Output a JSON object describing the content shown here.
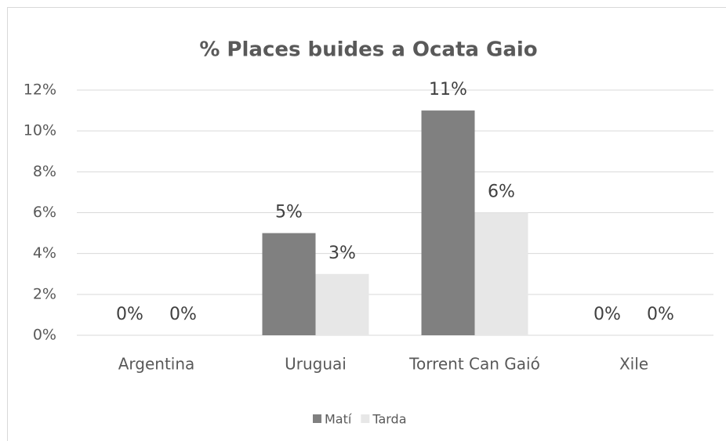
{
  "chart_data": {
    "type": "bar",
    "title": "% Places buides a Ocata Gaio",
    "categories": [
      "Argentina",
      "Uruguai",
      "Torrent Can Gaió",
      "Xile"
    ],
    "series": [
      {
        "name": "Matí",
        "color": "#808080",
        "values": [
          0,
          5,
          11,
          0
        ],
        "value_labels": [
          "0%",
          "5%",
          "11%",
          "0%"
        ]
      },
      {
        "name": "Tarda",
        "color": "#e7e7e7",
        "values": [
          0,
          3,
          6,
          0
        ],
        "value_labels": [
          "0%",
          "3%",
          "6%",
          "0%"
        ]
      }
    ],
    "ylim": [
      0,
      12
    ],
    "yticks": [
      {
        "value": 0,
        "label": "0%"
      },
      {
        "value": 2,
        "label": "2%"
      },
      {
        "value": 4,
        "label": "4%"
      },
      {
        "value": 6,
        "label": "6%"
      },
      {
        "value": 8,
        "label": "8%"
      },
      {
        "value": 10,
        "label": "10%"
      },
      {
        "value": 12,
        "label": "12%"
      }
    ],
    "grid": true,
    "legend": "bottom"
  }
}
